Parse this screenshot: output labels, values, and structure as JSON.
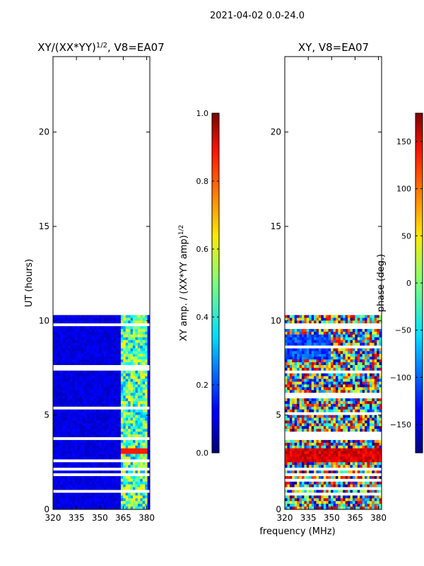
{
  "suptitle": "2021-04-02 0.0-24.0",
  "xlabel_shared": "frequency (MHz)",
  "chart_data": [
    {
      "type": "heatmap",
      "title": "XY/(XX*YY)",
      "title_sup": "1/2",
      "title_suffix": ", V8=EA07",
      "xlabel": "",
      "ylabel": "UT (hours)",
      "xlim": [
        320,
        382
      ],
      "ylim": [
        0,
        24
      ],
      "xticks": [
        320,
        335,
        350,
        365,
        380
      ],
      "yticks": [
        0,
        5,
        10,
        15,
        20
      ],
      "data_extent_hours": [
        0,
        10.3
      ],
      "bright_band_mhz": [
        364,
        380
      ],
      "colorbar": {
        "label": "XY amp. / (XX*YY amp)",
        "label_sup": "1/2",
        "range": [
          0.0,
          1.0
        ],
        "ticks": [
          "0.0",
          "0.2",
          "0.4",
          "0.6",
          "0.8",
          "1.0"
        ],
        "colormap": "jet"
      }
    },
    {
      "type": "heatmap",
      "title": "XY, V8=EA07",
      "xlabel": "frequency (MHz)",
      "ylabel": "",
      "xlim": [
        320,
        382
      ],
      "ylim": [
        0,
        24
      ],
      "xticks": [
        320,
        335,
        350,
        365,
        380
      ],
      "yticks": [
        0,
        5,
        10,
        15,
        20
      ],
      "data_extent_hours": [
        0,
        10.3
      ],
      "colorbar": {
        "label": "phase (deg.)",
        "range": [
          -180,
          180
        ],
        "ticks": [
          "−150",
          "−100",
          "−50",
          "0",
          "50",
          "100",
          "150"
        ],
        "colormap": "jet"
      }
    }
  ]
}
